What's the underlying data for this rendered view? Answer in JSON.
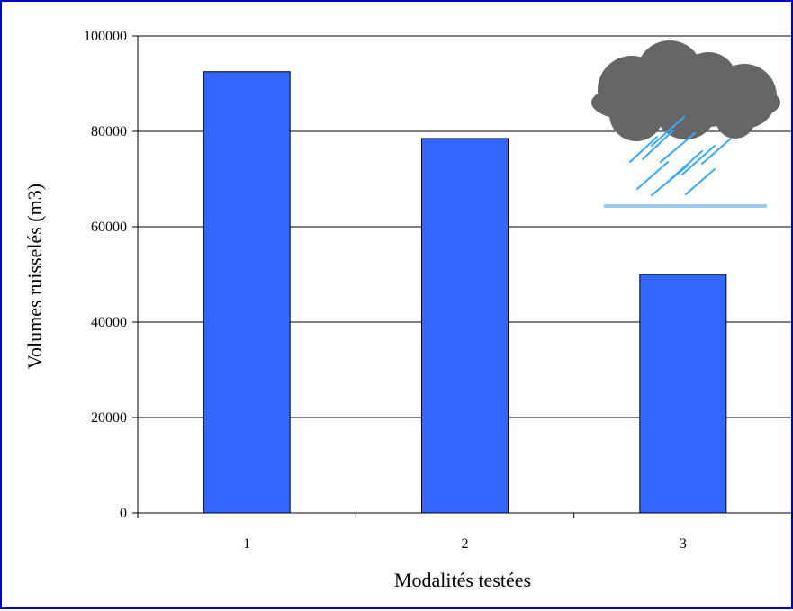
{
  "chart_data": {
    "type": "bar",
    "categories": [
      "1",
      "2",
      "3"
    ],
    "values": [
      92500,
      78500,
      50000
    ],
    "xlabel": "Modalités testées",
    "ylabel": "Volumes ruisselés (m3)",
    "ylim": [
      0,
      100000
    ],
    "yticks": [
      "0",
      "20000",
      "40000",
      "60000",
      "80000",
      "100000"
    ],
    "grid": true,
    "bar_color": "#3366ff",
    "decoration_icon": "rain-cloud-icon"
  }
}
